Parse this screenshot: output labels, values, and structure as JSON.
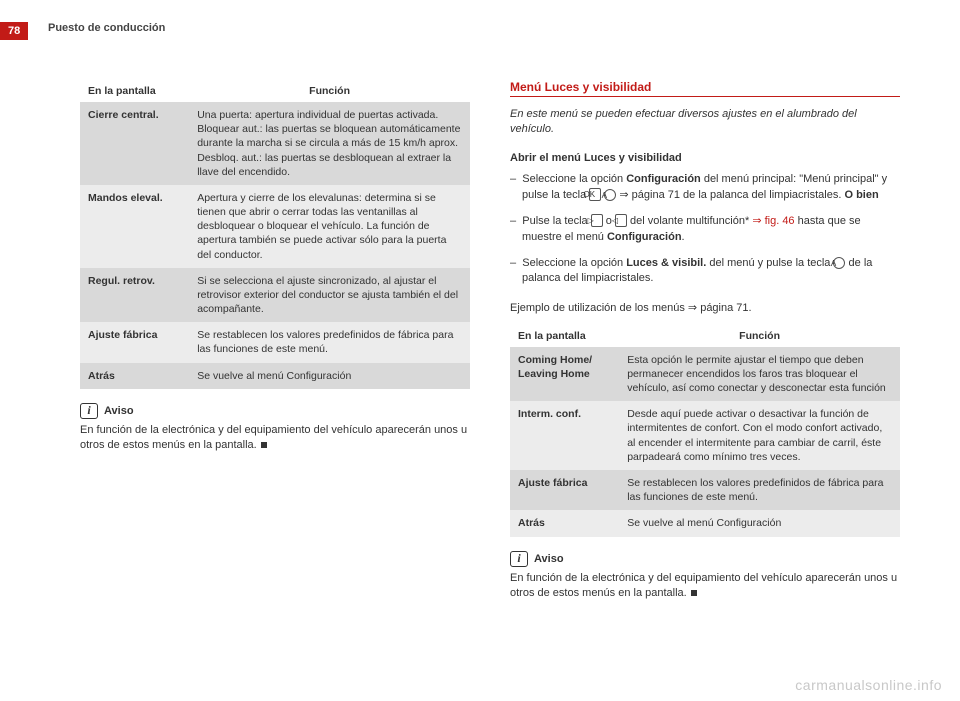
{
  "page_number": "78",
  "section_title": "Puesto de conducción",
  "left": {
    "table": {
      "head_left": "En la pantalla",
      "head_right": "Función",
      "rows": [
        {
          "shade": "shade",
          "label": "Cierre central.",
          "desc": "Una puerta: apertura individual de puertas activada.\nBloquear aut.: las puertas se bloquean automáticamente durante la marcha si se circula a más de 15 km/h aprox.\nDesbloq. aut.: las puertas se desbloquean al extraer la llave del encendido."
        },
        {
          "shade": "light",
          "label": "Mandos eleval.",
          "desc": "Apertura y cierre de los elevalunas: determina si se tienen que abrir o cerrar todas las ventanillas al desbloquear o bloquear el vehículo. La función de apertura también se puede activar sólo para la puerta del conductor."
        },
        {
          "shade": "shade",
          "label": "Regul. retrov.",
          "desc": "Si se selecciona el ajuste sincronizado, al ajustar el retrovisor exterior del conductor se ajusta también el del acompañante."
        },
        {
          "shade": "light",
          "label": "Ajuste fábrica",
          "desc": "Se restablecen los valores predefinidos de fábrica para las funciones de este menú."
        },
        {
          "shade": "shade",
          "label": "Atrás",
          "desc": "Se vuelve al menú Configuración"
        }
      ]
    },
    "note_label": "Aviso",
    "note_body": "En función de la electrónica y del equipamiento del vehículo aparecerán unos u otros de estos menús en la pantalla."
  },
  "right": {
    "heading": "Menú Luces y visibilidad",
    "intro": "En este menú se pueden efectuar diversos ajustes en el alumbrado del vehículo.",
    "sub": "Abrir el menú Luces y visibilidad",
    "b1a": "Seleccione la opción ",
    "b1b": "Configuración",
    "b1c": " del menú principal: \"Menú principal\" y pulse la tecla ",
    "b1d": " ⇒ página 71 de la palanca del limpiacristales. ",
    "b1e": "O bien",
    "b2a": "Pulse la tecla ",
    "b2b": " o ",
    "b2c": " del volante multifunción* ",
    "b2d": "⇒ fig. 46",
    "b2e": " hasta que se muestre el menú ",
    "b2f": "Configuración",
    "b2g": ".",
    "b3a": "Seleccione la opción ",
    "b3b": "Luces & visibil.",
    "b3c": " del menú y pulse la tecla ",
    "b3d": " de la palanca del limpiacristales.",
    "example": "Ejemplo de utilización de los menús ⇒ página 71.",
    "table": {
      "head_left": "En la pantalla",
      "head_right": "Función",
      "rows": [
        {
          "shade": "shade",
          "label": "Coming Home/ Leaving Home",
          "desc": "Esta opción le permite ajustar el tiempo que deben permanecer encendidos los faros tras bloquear el vehículo, así como conectar y desconectar esta función"
        },
        {
          "shade": "light",
          "label": "Interm. conf.",
          "desc": "Desde aquí puede activar o desactivar la función de intermitentes de confort. Con el modo confort activado, al encender el intermitente para cambiar de carril, éste parpadeará como mínimo tres veces."
        },
        {
          "shade": "shade",
          "label": "Ajuste fábrica",
          "desc": "Se restablecen los valores predefinidos de fábrica para las funciones de este menú."
        },
        {
          "shade": "light",
          "label": "Atrás",
          "desc": "Se vuelve al menú Configuración"
        }
      ]
    },
    "note_label": "Aviso",
    "note_body": "En función de la electrónica y del equipamiento del vehículo aparecerán unos u otros de estos menús en la pantalla."
  },
  "key_ok": "OK",
  "key_a": "A",
  "key_right": "▷",
  "key_left": "◁",
  "watermark": "carmanualsonline.info",
  "colors": {
    "brand": "#c21b17",
    "shade_dark": "#d9d9d9",
    "shade_light": "#ececec"
  }
}
